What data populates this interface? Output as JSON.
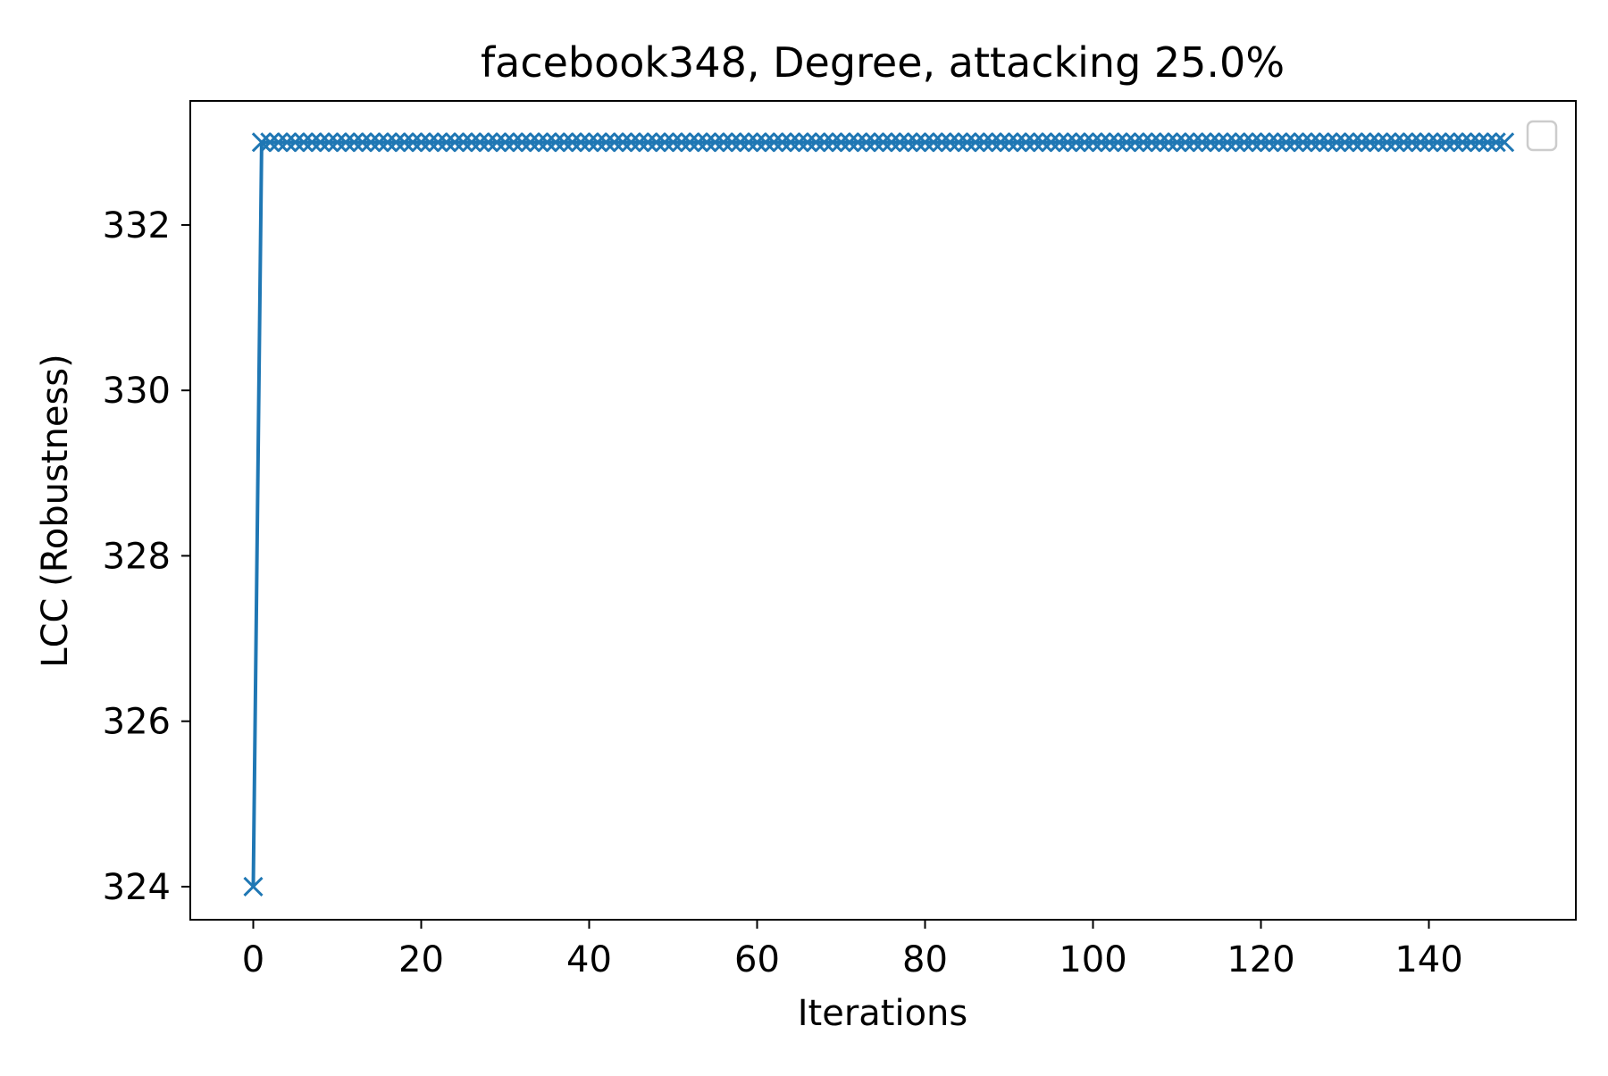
{
  "chart_data": {
    "type": "line",
    "title": "facebook348, Degree, attacking 25.0%",
    "xlabel": "Iterations",
    "ylabel": "LCC (Robustness)",
    "xlim": [
      -7.5,
      157.5
    ],
    "ylim": [
      323.6,
      333.5
    ],
    "xticks": [
      0,
      20,
      40,
      60,
      80,
      100,
      120,
      140
    ],
    "yticks": [
      324,
      326,
      328,
      330,
      332
    ],
    "grid": false,
    "legend": "top-right (empty)",
    "marker": "x",
    "colors": {
      "line": "#1f77b4",
      "axes": "#000000",
      "legend_frame": "#cccccc"
    },
    "series": [
      {
        "x_start": 0,
        "x_end": 149,
        "step": 1,
        "first_value": 324,
        "rest_value": 333
      }
    ]
  }
}
